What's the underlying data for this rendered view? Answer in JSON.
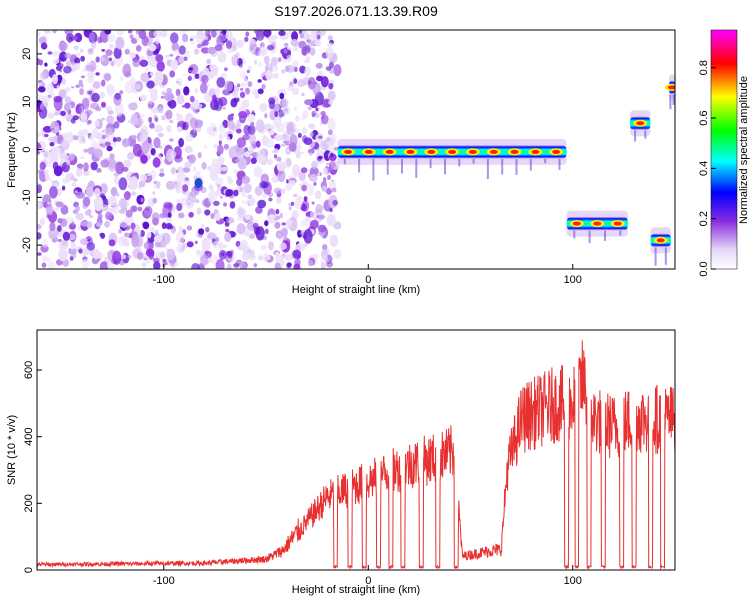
{
  "title": "S197.2026.071.13.39.R09",
  "chart_data": [
    {
      "type": "heatmap",
      "xlabel": "Height of straight line (km)",
      "ylabel": "Frequency (Hz)",
      "xlim": [
        -162,
        150
      ],
      "ylim": [
        -25,
        25
      ],
      "xticks": [
        -100,
        0,
        100
      ],
      "yticks": [
        -20,
        -10,
        0,
        10,
        20
      ],
      "colorbar": {
        "label": "Normalized spectral amplitude",
        "ticks": [
          0.0,
          0.2,
          0.4,
          0.6,
          0.8
        ],
        "range": [
          0,
          0.95
        ],
        "colormap": "rainbow (white - violet - blue - cyan - green - yellow - red - magenta)"
      },
      "noise_region": {
        "x_start": -162,
        "x_end": -15,
        "typical_amplitude": 0.1
      },
      "bands": [
        {
          "x_start": -15,
          "x_end": 97,
          "frequency_hz": -0.5,
          "peak_amplitude": 0.85
        },
        {
          "x_start": 97,
          "x_end": 127,
          "frequency_hz": -15.5,
          "peak_amplitude": 0.8
        },
        {
          "x_start": 128,
          "x_end": 138,
          "frequency_hz": 5.5,
          "peak_amplitude": 0.7
        },
        {
          "x_start": 138,
          "x_end": 148,
          "frequency_hz": -19,
          "peak_amplitude": 0.85
        },
        {
          "x_start": 147,
          "x_end": 150,
          "frequency_hz": 13,
          "peak_amplitude": 0.6
        }
      ],
      "spots": [
        {
          "x": -83,
          "frequency_hz": -7,
          "amplitude": 0.35
        }
      ]
    },
    {
      "type": "line",
      "xlabel": "Height of straight line (km)",
      "ylabel": "SNR (10 * v/v)",
      "xlim": [
        -162,
        150
      ],
      "ylim": [
        0,
        720
      ],
      "xticks": [
        -100,
        0,
        100
      ],
      "yticks": [
        0,
        200,
        400,
        600
      ],
      "series": [
        {
          "name": "SNR",
          "color": "#e83030",
          "envelope_x": [
            -162,
            -80,
            -50,
            -42,
            -20,
            0,
            20,
            36,
            42,
            46,
            60,
            65,
            68,
            75,
            90,
            100,
            105,
            110,
            120,
            130,
            150
          ],
          "envelope_y": [
            20,
            25,
            40,
            70,
            270,
            330,
            390,
            420,
            440,
            50,
            70,
            75,
            380,
            560,
            610,
            620,
            700,
            560,
            530,
            560,
            560
          ],
          "dropouts": [
            [
              -17,
              -15
            ],
            [
              -10,
              -8
            ],
            [
              -3,
              -1
            ],
            [
              4,
              6
            ],
            [
              10,
              12
            ],
            [
              16,
              18
            ],
            [
              25,
              27
            ],
            [
              33,
              35
            ],
            [
              42,
              44
            ],
            [
              96,
              98
            ],
            [
              101,
              103
            ],
            [
              107,
              109
            ],
            [
              114,
              116
            ],
            [
              123,
              125
            ],
            [
              129,
              131
            ],
            [
              137,
              139
            ],
            [
              143,
              145
            ]
          ]
        }
      ]
    }
  ]
}
